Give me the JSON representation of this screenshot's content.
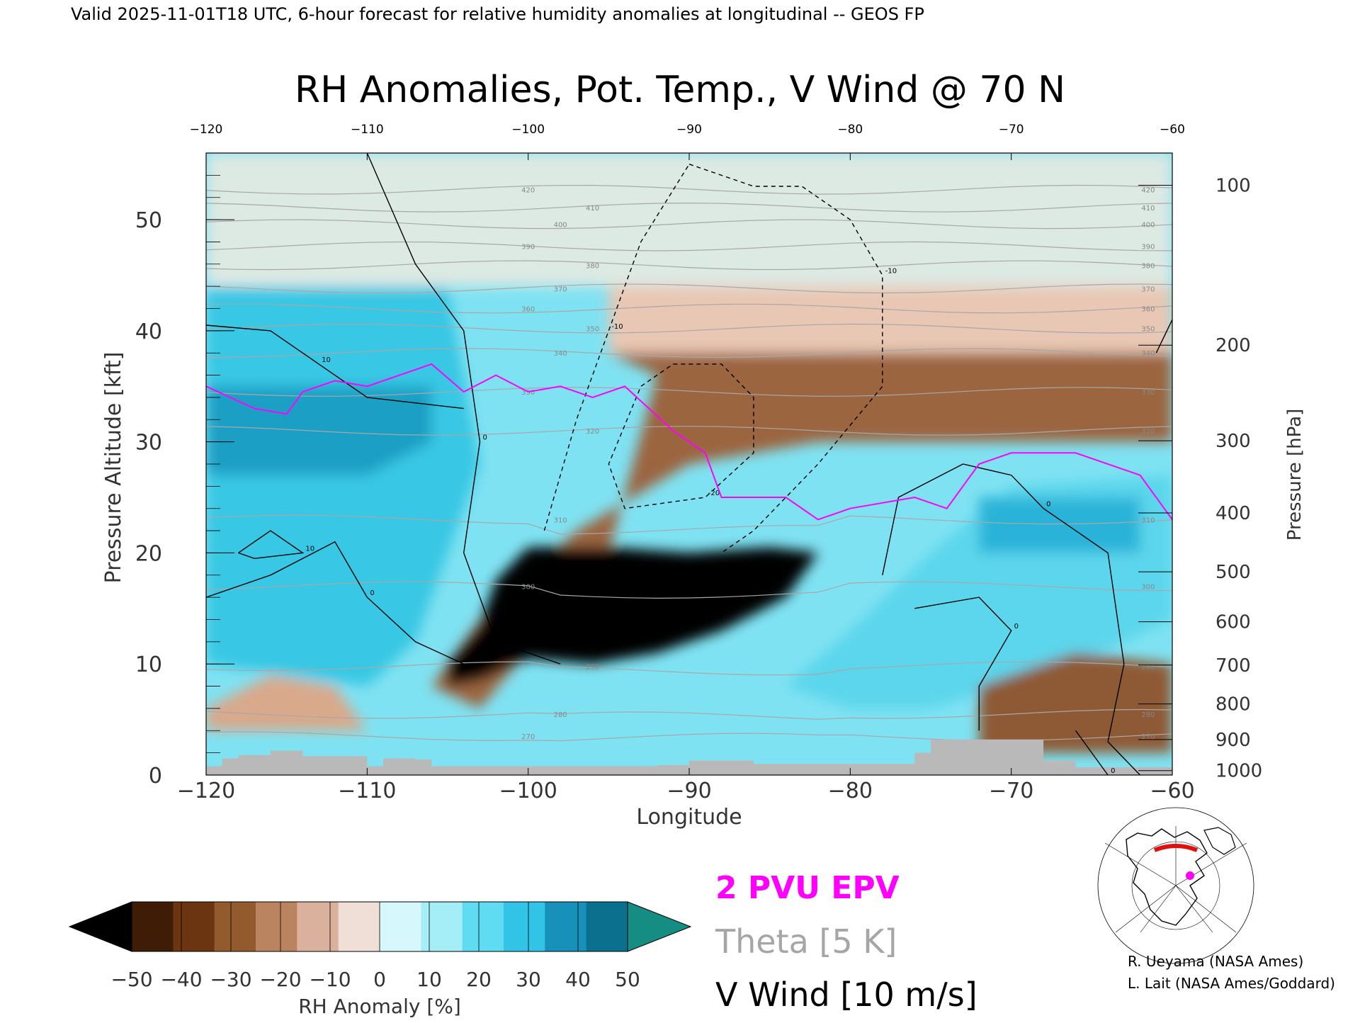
{
  "header": {
    "valid_line": "Valid 2025-11-01T18 UTC, 6-hour forecast for relative humidity anomalies at longitudinal -- GEOS FP"
  },
  "chart_data": {
    "type": "heatmap",
    "title": "RH Anomalies, Pot. Temp., V Wind @ 70 N",
    "xlabel": "Longitude",
    "ylabel_left": "Pressure Altitude [kft]",
    "ylabel_right": "Pressure [hPa]",
    "xlim": [
      -120,
      -60
    ],
    "ylim": [
      0,
      56
    ],
    "x_ticks": [
      -120,
      -110,
      -100,
      -90,
      -80,
      -70,
      -60
    ],
    "x_tick_labels": [
      "−120",
      "−110",
      "−100",
      "−90",
      "−80",
      "−70",
      "−60"
    ],
    "y_ticks": [
      0,
      10,
      20,
      30,
      40,
      50
    ],
    "y_tick_labels": [
      "0",
      "10",
      "20",
      "30",
      "40",
      "50"
    ],
    "pressure_ticks": [
      {
        "label": "100",
        "kft": 53.1
      },
      {
        "label": "200",
        "kft": 38.7
      },
      {
        "label": "300",
        "kft": 30.1
      },
      {
        "label": "400",
        "kft": 23.6
      },
      {
        "label": "500",
        "kft": 18.3
      },
      {
        "label": "600",
        "kft": 13.8
      },
      {
        "label": "700",
        "kft": 9.9
      },
      {
        "label": "800",
        "kft": 6.4
      },
      {
        "label": "900",
        "kft": 3.2
      },
      {
        "label": "1000",
        "kft": 0.4
      }
    ],
    "rh_anomaly_regions": [
      {
        "name": "upper stratosphere",
        "value": 2,
        "color": "#dde9e3",
        "poly": [
          [
            -120,
            56
          ],
          [
            -60,
            56
          ],
          [
            -60,
            44
          ],
          [
            -120,
            44
          ]
        ]
      },
      {
        "name": "upper brown layer",
        "value": -10,
        "color": "#e8c8b4",
        "poly": [
          [
            -95,
            44
          ],
          [
            -60,
            44
          ],
          [
            -60,
            38
          ],
          [
            -95,
            38
          ]
        ]
      },
      {
        "name": "brown band",
        "value": -30,
        "color": "#9b6540",
        "poly": [
          [
            -95,
            38
          ],
          [
            -60,
            38
          ],
          [
            -60,
            30
          ],
          [
            -82,
            30
          ],
          [
            -90,
            28
          ],
          [
            -97,
            22
          ],
          [
            -103,
            14
          ],
          [
            -106,
            8
          ],
          [
            -103,
            6
          ],
          [
            -95,
            20
          ],
          [
            -92,
            36
          ]
        ]
      },
      {
        "name": "dry core",
        "value": -50,
        "color": "#000000",
        "poly": [
          [
            -105,
            10
          ],
          [
            -103,
            13.5
          ],
          [
            -102,
            17.5
          ],
          [
            -100,
            20.5
          ],
          [
            -95,
            20.5
          ],
          [
            -90,
            20
          ],
          [
            -85,
            20.5
          ],
          [
            -82,
            20
          ],
          [
            -84,
            16
          ],
          [
            -88,
            13
          ],
          [
            -92,
            11
          ],
          [
            -96,
            10
          ],
          [
            -100,
            10.5
          ],
          [
            -103,
            8.5
          ],
          [
            -105,
            8
          ]
        ]
      },
      {
        "name": "west moist column",
        "value": 30,
        "color": "#38c7e4",
        "poly": [
          [
            -120,
            44
          ],
          [
            -105,
            44
          ],
          [
            -104,
            36
          ],
          [
            -103,
            28
          ],
          [
            -105,
            20
          ],
          [
            -107,
            12
          ],
          [
            -110,
            8
          ],
          [
            -120,
            10
          ]
        ]
      },
      {
        "name": "west moist core",
        "value": 40,
        "color": "#1a9fc4",
        "poly": [
          [
            -120,
            35
          ],
          [
            -106,
            35
          ],
          [
            -106,
            30
          ],
          [
            -110,
            27
          ],
          [
            -120,
            27
          ]
        ]
      },
      {
        "name": "east moist wedge",
        "value": 20,
        "color": "#5cd6ec",
        "poly": [
          [
            -84,
            8
          ],
          [
            -80,
            13
          ],
          [
            -75,
            20
          ],
          [
            -70,
            26
          ],
          [
            -60,
            27
          ],
          [
            -60,
            14
          ],
          [
            -66,
            10
          ],
          [
            -75,
            6
          ],
          [
            -80,
            6
          ]
        ]
      },
      {
        "name": "east moist core",
        "value": 40,
        "color": "#2bb3d8",
        "poly": [
          [
            -72,
            25
          ],
          [
            -62,
            25
          ],
          [
            -62,
            20
          ],
          [
            -72,
            20
          ]
        ]
      },
      {
        "name": "low brown east",
        "value": -30,
        "color": "#8e5a36",
        "poly": [
          [
            -72,
            2
          ],
          [
            -60,
            2
          ],
          [
            -60,
            10
          ],
          [
            -66,
            11
          ],
          [
            -72,
            8
          ]
        ]
      },
      {
        "name": "low brown west",
        "value": -10,
        "color": "#d9a98b",
        "poly": [
          [
            -120,
            6
          ],
          [
            -116,
            9
          ],
          [
            -112,
            8
          ],
          [
            -110,
            4
          ],
          [
            -120,
            4
          ]
        ]
      }
    ],
    "v_wind_contours": [
      {
        "label": "0",
        "style": "solid",
        "points": [
          [
            -110,
            56
          ],
          [
            -107,
            46
          ],
          [
            -104,
            40
          ],
          [
            -103,
            30
          ],
          [
            -104,
            20
          ],
          [
            -102,
            12
          ],
          [
            -98,
            10
          ]
        ]
      },
      {
        "label": "10",
        "style": "solid",
        "points": [
          [
            -120,
            40.5
          ],
          [
            -116,
            40
          ],
          [
            -113,
            37
          ],
          [
            -110,
            34
          ],
          [
            -104,
            33
          ]
        ]
      },
      {
        "label": "10",
        "style": "solid",
        "points": [
          [
            -118,
            20
          ],
          [
            -116,
            22
          ],
          [
            -114,
            20
          ],
          [
            -117,
            19.5
          ],
          [
            -118,
            20
          ]
        ]
      },
      {
        "label": "0",
        "style": "solid",
        "points": [
          [
            -120,
            16
          ],
          [
            -116,
            18
          ],
          [
            -112,
            21
          ],
          [
            -110,
            16
          ],
          [
            -107,
            12
          ],
          [
            -104,
            10
          ]
        ]
      },
      {
        "label": "0",
        "style": "solid",
        "points": [
          [
            -78,
            18
          ],
          [
            -77,
            25
          ],
          [
            -73,
            28
          ],
          [
            -70,
            27
          ],
          [
            -68,
            24
          ],
          [
            -64,
            20
          ],
          [
            -63,
            10
          ],
          [
            -64,
            3
          ],
          [
            -62,
            0
          ]
        ]
      },
      {
        "label": "0",
        "style": "solid",
        "points": [
          [
            -76,
            15
          ],
          [
            -72,
            16
          ],
          [
            -70,
            13
          ],
          [
            -72,
            8
          ],
          [
            -72,
            4
          ]
        ]
      },
      {
        "label": "0",
        "style": "solid",
        "points": [
          [
            -66,
            4
          ],
          [
            -64,
            0
          ]
        ]
      },
      {
        "label": "0",
        "style": "solid",
        "points": [
          [
            -61,
            38
          ],
          [
            -60,
            41
          ]
        ]
      },
      {
        "label": "-10",
        "style": "dashed",
        "points": [
          [
            -90,
            55
          ],
          [
            -86,
            53
          ],
          [
            -83,
            53
          ],
          [
            -80,
            50
          ],
          [
            -78,
            45
          ],
          [
            -78,
            35
          ],
          [
            -82,
            28
          ],
          [
            -86,
            22
          ],
          [
            -88,
            20
          ]
        ]
      },
      {
        "label": "-10",
        "style": "dashed",
        "points": [
          [
            -99,
            22
          ],
          [
            -97,
            32
          ],
          [
            -95,
            40
          ],
          [
            -93,
            48
          ],
          [
            -90,
            55
          ]
        ]
      },
      {
        "label": "-20",
        "style": "dashed",
        "points": [
          [
            -91,
            37
          ],
          [
            -88,
            37
          ],
          [
            -86,
            34
          ],
          [
            -86,
            29
          ],
          [
            -89,
            25
          ],
          [
            -94,
            24
          ],
          [
            -95,
            28
          ],
          [
            -93,
            35
          ],
          [
            -91,
            37
          ]
        ]
      }
    ],
    "theta_isentropes_K": [
      {
        "label": "270",
        "kft": 3.5
      },
      {
        "label": "280",
        "kft": 5.5
      },
      {
        "label": "290",
        "kft": 9.8
      },
      {
        "label": "300",
        "kft": 17
      },
      {
        "label": "310",
        "kft": 23
      },
      {
        "label": "320",
        "kft": 31
      },
      {
        "label": "330",
        "kft": 34.5
      },
      {
        "label": "340",
        "kft": 38
      },
      {
        "label": "350",
        "kft": 40.2
      },
      {
        "label": "360",
        "kft": 42
      },
      {
        "label": "370",
        "kft": 43.8
      },
      {
        "label": "380",
        "kft": 45.9
      },
      {
        "label": "390",
        "kft": 47.6
      },
      {
        "label": "400",
        "kft": 49.6
      },
      {
        "label": "410",
        "kft": 51.1
      },
      {
        "label": "420",
        "kft": 52.7
      }
    ],
    "epv_2pvu_line": [
      [
        -120,
        35
      ],
      [
        -117,
        33
      ],
      [
        -115,
        32.5
      ],
      [
        -114,
        34.5
      ],
      [
        -112,
        35.5
      ],
      [
        -110,
        35
      ],
      [
        -106,
        37
      ],
      [
        -104,
        34.5
      ],
      [
        -102,
        36
      ],
      [
        -100,
        34.5
      ],
      [
        -98,
        35
      ],
      [
        -96,
        34
      ],
      [
        -94,
        35
      ],
      [
        -91,
        31
      ],
      [
        -89,
        29
      ],
      [
        -88,
        25
      ],
      [
        -84,
        25
      ],
      [
        -82,
        23
      ],
      [
        -80,
        24
      ],
      [
        -76,
        25
      ],
      [
        -74,
        24
      ],
      [
        -72,
        28
      ],
      [
        -70,
        29
      ],
      [
        -66,
        29
      ],
      [
        -62,
        27
      ],
      [
        -60,
        23
      ]
    ],
    "topography": [
      [
        -120,
        0.8
      ],
      [
        -119,
        1.5
      ],
      [
        -118,
        1.8
      ],
      [
        -116,
        2.2
      ],
      [
        -114,
        1.7
      ],
      [
        -110,
        0.8
      ],
      [
        -109,
        1.5
      ],
      [
        -107,
        1.4
      ],
      [
        -106,
        0.8
      ],
      [
        -92,
        0.9
      ],
      [
        -90,
        1.3
      ],
      [
        -86,
        1.0
      ],
      [
        -76,
        2.0
      ],
      [
        -75,
        3.2
      ],
      [
        -71,
        3.2
      ],
      [
        -68,
        1.3
      ],
      [
        -66,
        0.7
      ],
      [
        -60,
        0.7
      ]
    ],
    "colorbar": {
      "label": "RH Anomaly [%]",
      "tick_labels": [
        "−50",
        "−40",
        "−30",
        "−20",
        "−10",
        "0",
        "10",
        "20",
        "30",
        "40",
        "50"
      ],
      "colors": [
        "#3e1c06",
        "#6a3510",
        "#935a2e",
        "#ba8460",
        "#d9b19c",
        "#f0dfd6",
        "#d6f7fb",
        "#a5edf7",
        "#5fdcf2",
        "#31c4e7",
        "#1791b9",
        "#0b6f8e"
      ],
      "low_color": "#000000",
      "high_color": "#158d82"
    }
  },
  "legend": {
    "epv": "2 PVU EPV",
    "theta": "Theta [5 K]",
    "vwind": "V Wind [10 m/s]",
    "epv_color": "#ff00ff",
    "theta_color": "#a6a6a6",
    "vwind_color": "#000000"
  },
  "inset_map": {
    "caption": "location map with 70 N transect"
  },
  "credits": {
    "line1": "R. Ueyama (NASA Ames)",
    "line2": "L. Lait (NASA Ames/Goddard)"
  }
}
